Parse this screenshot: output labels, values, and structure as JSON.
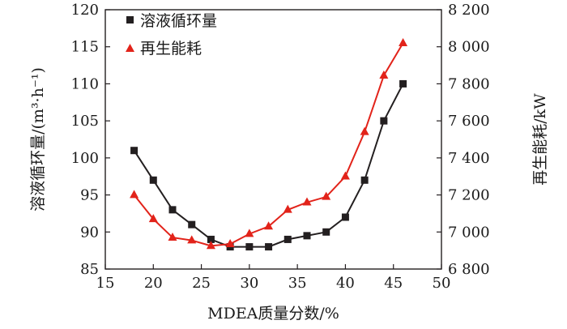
{
  "chart_data": {
    "type": "line",
    "xlabel": "MDEA质量分数/%",
    "ylabel_left": "溶液循环量/(m³·h⁻¹)",
    "ylabel_right": "再生能耗/kW",
    "xlim": [
      15,
      50
    ],
    "ylim_left": [
      85,
      120
    ],
    "ylim_right": [
      6800,
      8200
    ],
    "x_ticks": [
      15,
      20,
      25,
      30,
      35,
      40,
      45,
      50
    ],
    "y_ticks_left": [
      85,
      90,
      95,
      100,
      105,
      110,
      115,
      120
    ],
    "y_ticks_right": [
      6800,
      7000,
      7200,
      7400,
      7600,
      7800,
      8000,
      8200
    ],
    "y_tick_labels_right": [
      "6 800",
      "7 000",
      "7 200",
      "7 400",
      "7 600",
      "7 800",
      "8 000",
      "8 200"
    ],
    "grid": false,
    "legend_position": "top-left",
    "series": [
      {
        "name": "溶液循环量",
        "axis": "left",
        "marker": "square",
        "color": "#231f20",
        "x": [
          18,
          20,
          22,
          24,
          26,
          28,
          30,
          32,
          34,
          36,
          38,
          40,
          42,
          44,
          46
        ],
        "y": [
          101,
          97,
          93,
          91,
          89,
          88,
          88,
          88,
          89,
          89.5,
          90,
          92,
          97,
          105,
          110
        ]
      },
      {
        "name": "再生能耗",
        "axis": "right",
        "marker": "triangle",
        "color": "#e2231a",
        "x": [
          18,
          20,
          22,
          24,
          26,
          28,
          30,
          32,
          34,
          36,
          38,
          40,
          42,
          44,
          46
        ],
        "y": [
          7200,
          7070,
          6970,
          6955,
          6925,
          6935,
          6990,
          7030,
          7120,
          7160,
          7190,
          7300,
          7540,
          7845,
          8020
        ]
      }
    ]
  }
}
